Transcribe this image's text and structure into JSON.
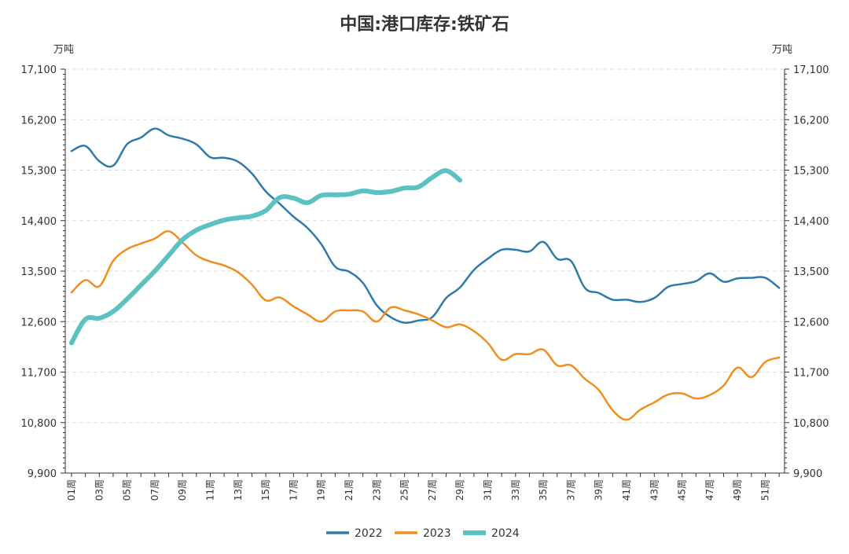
{
  "chart_data": {
    "type": "line",
    "title": "中国:港口库存:铁矿石",
    "y_unit_left": "万吨",
    "y_unit_right": "万吨",
    "ylim": [
      9900,
      17100
    ],
    "y_ticks": [
      "9,900",
      "10,800",
      "11,700",
      "12,600",
      "13,500",
      "14,400",
      "15,300",
      "16,200",
      "17,100"
    ],
    "y_tick_values": [
      9900,
      10800,
      11700,
      12600,
      13500,
      14400,
      15300,
      16200,
      17100
    ],
    "x_labels": [
      "01周",
      "03周",
      "05周",
      "07周",
      "09周",
      "11周",
      "13周",
      "15周",
      "17周",
      "19周",
      "21周",
      "23周",
      "25周",
      "27周",
      "29周",
      "31周",
      "33周",
      "35周",
      "37周",
      "39周",
      "41周",
      "43周",
      "45周",
      "47周",
      "49周",
      "51周"
    ],
    "x_label_weeks": [
      1,
      3,
      5,
      7,
      9,
      11,
      13,
      15,
      17,
      19,
      21,
      23,
      25,
      27,
      29,
      31,
      33,
      35,
      37,
      39,
      41,
      43,
      45,
      47,
      49,
      51
    ],
    "x_range": [
      1,
      52
    ],
    "grid": true,
    "legend_position": "bottom-center",
    "series": [
      {
        "name": "2022",
        "color": "#2f7aa8",
        "width": 2.5,
        "points": [
          [
            1,
            15640
          ],
          [
            2,
            15730
          ],
          [
            3,
            15460
          ],
          [
            4,
            15380
          ],
          [
            5,
            15760
          ],
          [
            6,
            15880
          ],
          [
            7,
            16040
          ],
          [
            8,
            15920
          ],
          [
            9,
            15860
          ],
          [
            10,
            15760
          ],
          [
            11,
            15530
          ],
          [
            12,
            15520
          ],
          [
            13,
            15450
          ],
          [
            14,
            15240
          ],
          [
            15,
            14920
          ],
          [
            16,
            14700
          ],
          [
            17,
            14470
          ],
          [
            18,
            14270
          ],
          [
            19,
            13980
          ],
          [
            20,
            13580
          ],
          [
            21,
            13490
          ],
          [
            22,
            13290
          ],
          [
            23,
            12890
          ],
          [
            24,
            12680
          ],
          [
            25,
            12580
          ],
          [
            26,
            12620
          ],
          [
            27,
            12680
          ],
          [
            28,
            13020
          ],
          [
            29,
            13210
          ],
          [
            30,
            13520
          ],
          [
            31,
            13720
          ],
          [
            32,
            13880
          ],
          [
            33,
            13880
          ],
          [
            34,
            13850
          ],
          [
            35,
            14020
          ],
          [
            36,
            13720
          ],
          [
            37,
            13680
          ],
          [
            38,
            13200
          ],
          [
            39,
            13110
          ],
          [
            40,
            12990
          ],
          [
            41,
            12990
          ],
          [
            42,
            12950
          ],
          [
            43,
            13020
          ],
          [
            44,
            13220
          ],
          [
            45,
            13270
          ],
          [
            46,
            13320
          ],
          [
            47,
            13460
          ],
          [
            48,
            13310
          ],
          [
            49,
            13370
          ],
          [
            50,
            13380
          ],
          [
            51,
            13380
          ],
          [
            52,
            13200
          ]
        ]
      },
      {
        "name": "2023",
        "color": "#f28e1e",
        "width": 2.5,
        "points": [
          [
            1,
            13120
          ],
          [
            2,
            13340
          ],
          [
            3,
            13230
          ],
          [
            4,
            13680
          ],
          [
            5,
            13890
          ],
          [
            6,
            13990
          ],
          [
            7,
            14080
          ],
          [
            8,
            14210
          ],
          [
            9,
            14010
          ],
          [
            10,
            13780
          ],
          [
            11,
            13670
          ],
          [
            12,
            13600
          ],
          [
            13,
            13480
          ],
          [
            14,
            13260
          ],
          [
            15,
            12980
          ],
          [
            16,
            13030
          ],
          [
            17,
            12870
          ],
          [
            18,
            12730
          ],
          [
            19,
            12600
          ],
          [
            20,
            12780
          ],
          [
            21,
            12800
          ],
          [
            22,
            12780
          ],
          [
            23,
            12600
          ],
          [
            24,
            12850
          ],
          [
            25,
            12800
          ],
          [
            26,
            12730
          ],
          [
            27,
            12620
          ],
          [
            28,
            12500
          ],
          [
            29,
            12550
          ],
          [
            30,
            12430
          ],
          [
            31,
            12220
          ],
          [
            32,
            11920
          ],
          [
            33,
            12020
          ],
          [
            34,
            12020
          ],
          [
            35,
            12100
          ],
          [
            36,
            11820
          ],
          [
            37,
            11820
          ],
          [
            38,
            11580
          ],
          [
            39,
            11380
          ],
          [
            40,
            11020
          ],
          [
            41,
            10850
          ],
          [
            42,
            11030
          ],
          [
            43,
            11160
          ],
          [
            44,
            11300
          ],
          [
            45,
            11320
          ],
          [
            46,
            11230
          ],
          [
            47,
            11290
          ],
          [
            48,
            11460
          ],
          [
            49,
            11780
          ],
          [
            50,
            11610
          ],
          [
            51,
            11880
          ],
          [
            52,
            11960
          ]
        ]
      },
      {
        "name": "2024",
        "color": "#5bc2c2",
        "width": 6,
        "points": [
          [
            1,
            12220
          ],
          [
            2,
            12640
          ],
          [
            3,
            12660
          ],
          [
            4,
            12780
          ],
          [
            5,
            13000
          ],
          [
            6,
            13250
          ],
          [
            7,
            13500
          ],
          [
            8,
            13780
          ],
          [
            9,
            14060
          ],
          [
            10,
            14230
          ],
          [
            11,
            14330
          ],
          [
            12,
            14410
          ],
          [
            13,
            14450
          ],
          [
            14,
            14480
          ],
          [
            15,
            14580
          ],
          [
            16,
            14810
          ],
          [
            17,
            14800
          ],
          [
            18,
            14720
          ],
          [
            19,
            14850
          ],
          [
            20,
            14860
          ],
          [
            21,
            14870
          ],
          [
            22,
            14930
          ],
          [
            23,
            14900
          ],
          [
            24,
            14920
          ],
          [
            25,
            14980
          ],
          [
            26,
            15000
          ],
          [
            27,
            15170
          ],
          [
            28,
            15290
          ],
          [
            29,
            15120
          ]
        ]
      }
    ]
  }
}
